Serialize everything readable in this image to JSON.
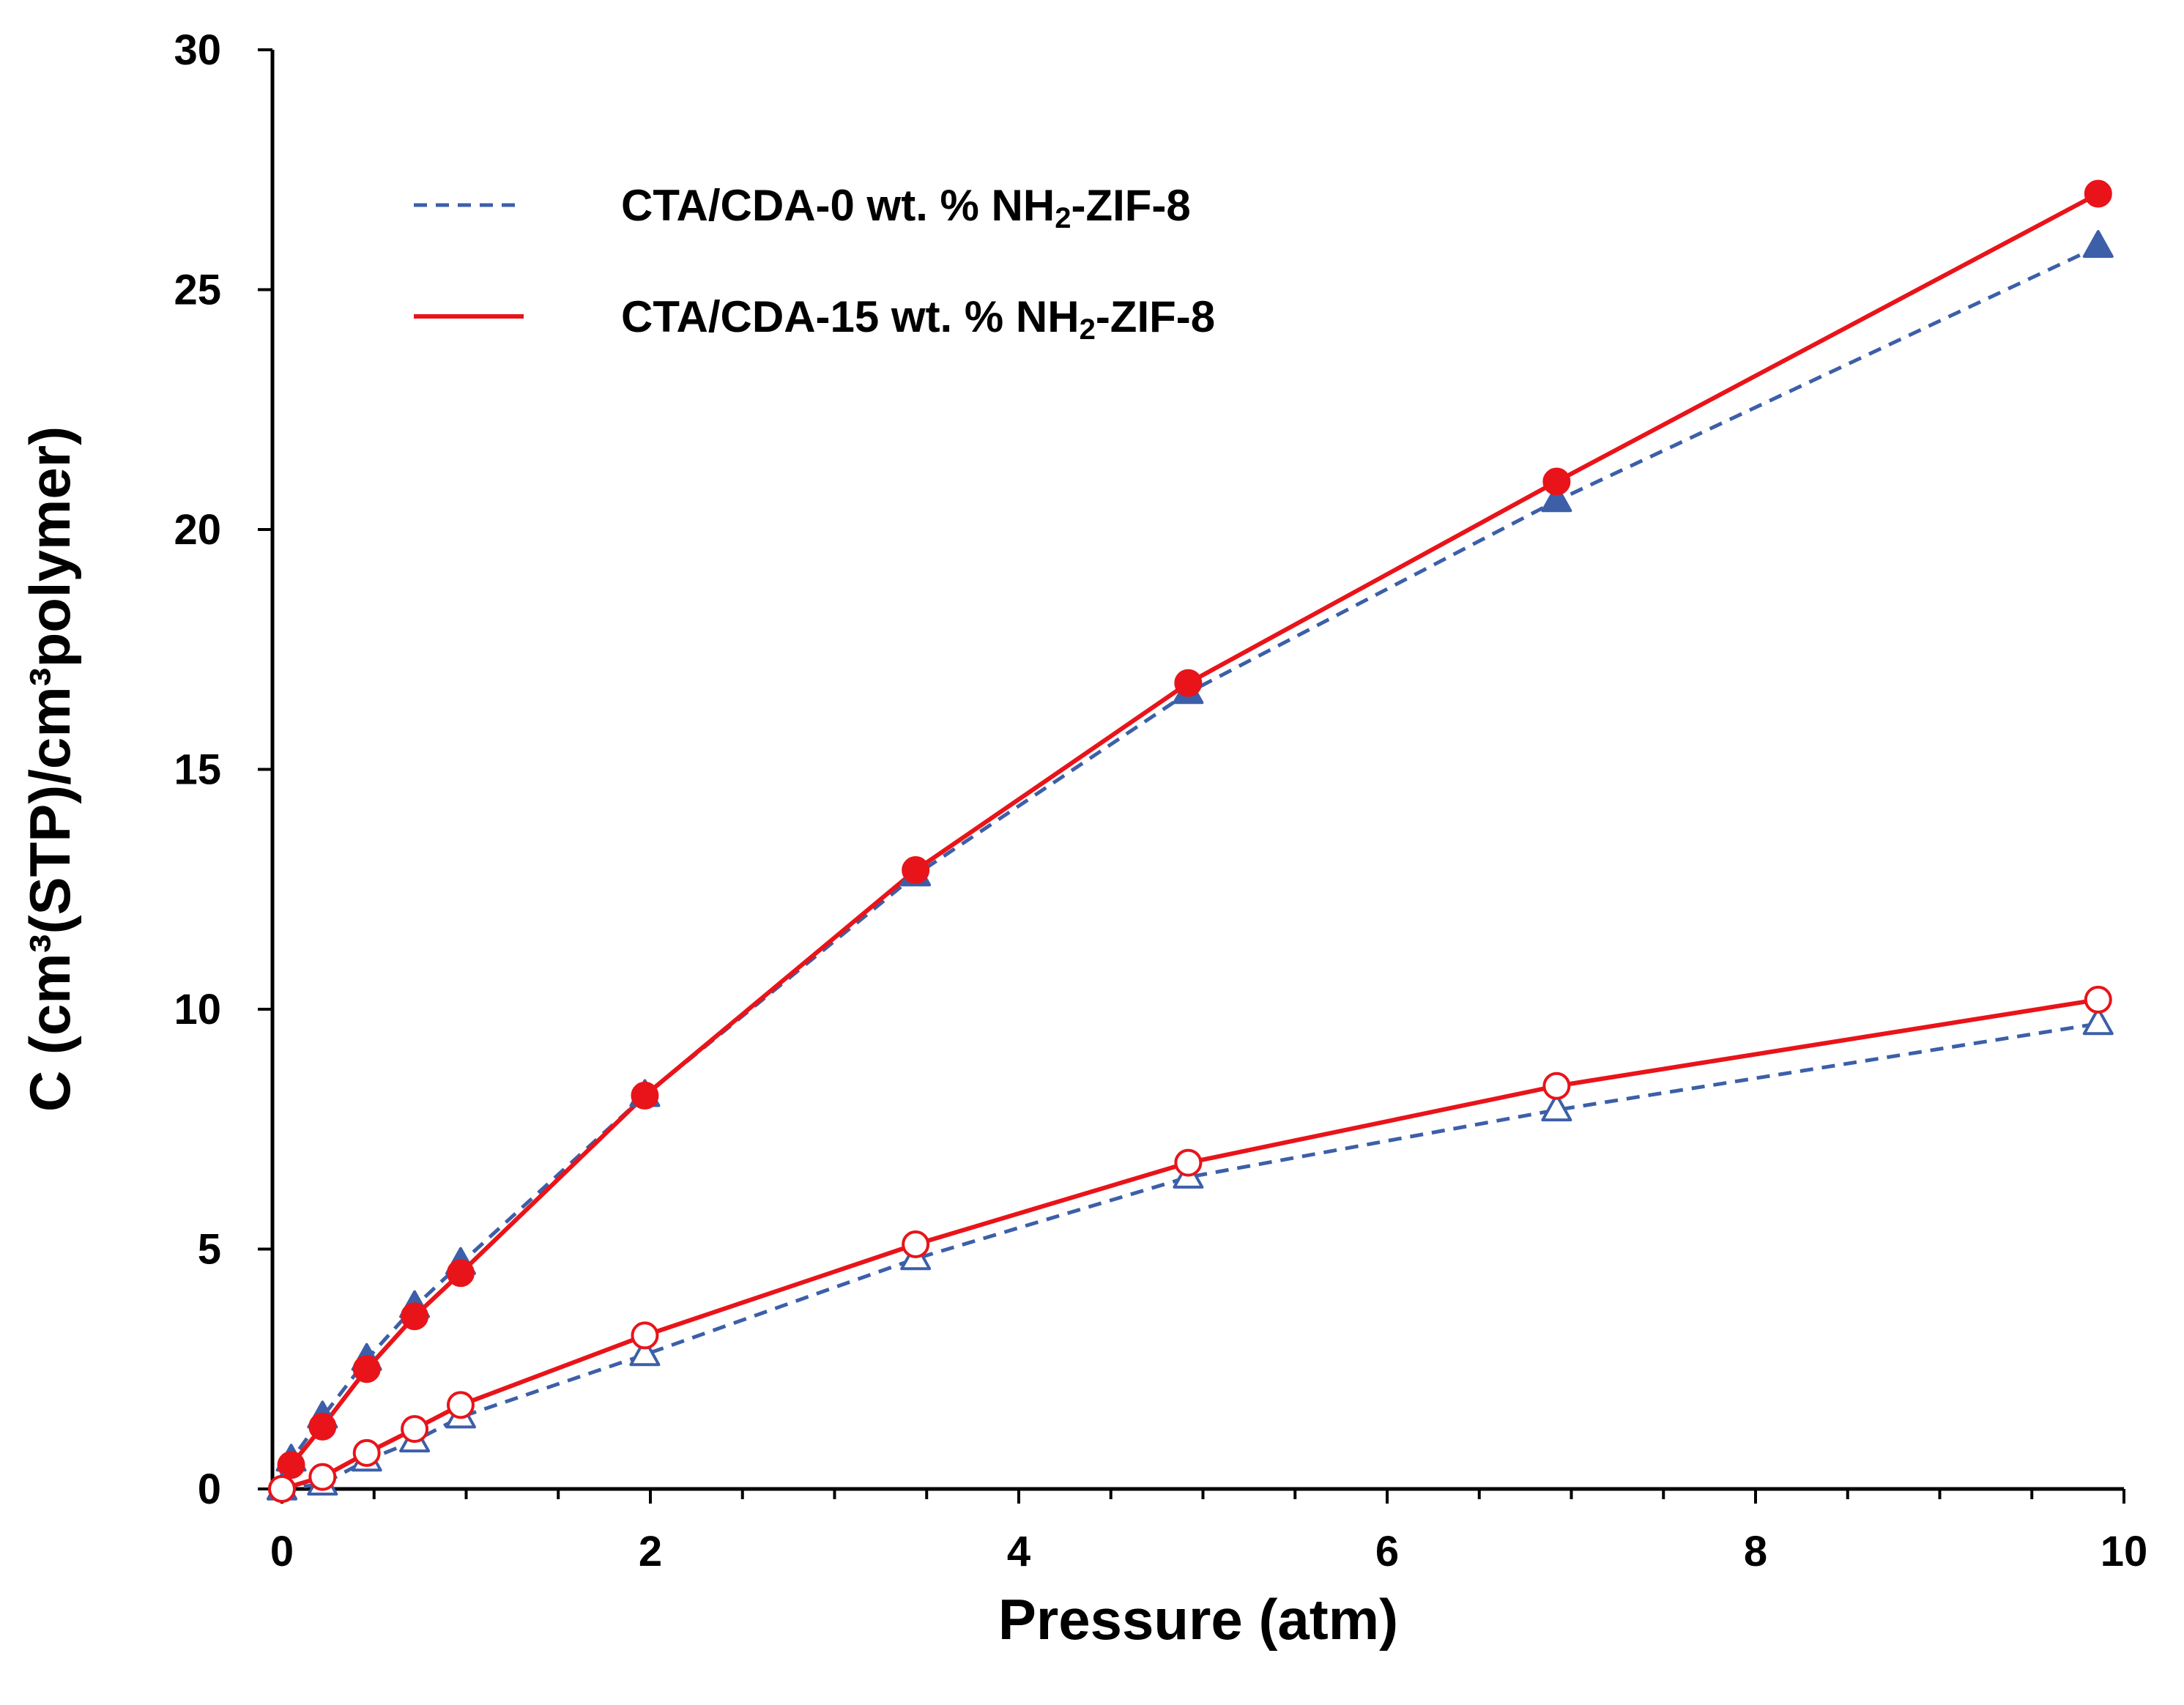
{
  "chart_data": {
    "type": "line",
    "title": "",
    "xlabel": "Pressure (atm)",
    "ylabel": "C (cm³(STP)/cm³polymer)",
    "xlim": [
      0,
      10
    ],
    "ylim": [
      0,
      30
    ],
    "xticks": [
      0,
      2,
      4,
      6,
      8,
      10
    ],
    "xtick_labels": [
      "0",
      "2",
      "4",
      "6",
      "8",
      "10"
    ],
    "yticks": [
      0,
      5,
      10,
      15,
      20,
      25,
      30
    ],
    "ytick_labels": [
      "0",
      "5",
      "10",
      "15",
      "20",
      "25",
      "30"
    ],
    "grid": false,
    "legend_position": "top-left",
    "legend": [
      {
        "label_prefix": "CTA/CDA-0 wt. % NH",
        "label_sub": "2",
        "label_suffix": "-ZIF-8",
        "style": "dashed",
        "color": "#3c5fa8"
      },
      {
        "label_prefix": "CTA/CDA-15 wt. % NH",
        "label_sub": "2",
        "label_suffix": "-ZIF-8",
        "style": "solid",
        "color": "#e8141a"
      }
    ],
    "series": [
      {
        "name": "CTA/CDA-0 wt. % NH2-ZIF-8 (filled triangles)",
        "line": "dashed",
        "color": "#3c5fa8",
        "marker": "triangle",
        "filled": true,
        "x": [
          0,
          0.05,
          0.22,
          0.46,
          0.72,
          0.97,
          1.97,
          3.44,
          4.92,
          6.92,
          9.86
        ],
        "y": [
          0,
          0.6,
          1.5,
          2.7,
          3.8,
          4.7,
          8.2,
          12.8,
          16.6,
          20.6,
          25.9
        ]
      },
      {
        "name": "CTA/CDA-15 wt. % NH2-ZIF-8 (filled circles)",
        "line": "solid",
        "color": "#e8141a",
        "marker": "circle",
        "filled": true,
        "x": [
          0,
          0.05,
          0.22,
          0.46,
          0.72,
          0.97,
          1.97,
          3.44,
          4.92,
          6.92,
          9.86
        ],
        "y": [
          0,
          0.5,
          1.3,
          2.5,
          3.6,
          4.5,
          8.2,
          12.9,
          16.8,
          21.0,
          27.0
        ]
      },
      {
        "name": "CTA/CDA-0 wt. % NH2-ZIF-8 (open triangles)",
        "line": "dashed",
        "color": "#3c5fa8",
        "marker": "triangle",
        "filled": false,
        "x": [
          0,
          0.22,
          0.46,
          0.72,
          0.97,
          1.97,
          3.44,
          4.92,
          6.92,
          9.86
        ],
        "y": [
          0,
          0.1,
          0.6,
          1.0,
          1.5,
          2.8,
          4.8,
          6.5,
          7.9,
          9.7
        ]
      },
      {
        "name": "CTA/CDA-15 wt. % NH2-ZIF-8 (open circles)",
        "line": "solid",
        "color": "#e8141a",
        "marker": "circle",
        "filled": false,
        "x": [
          0,
          0.22,
          0.46,
          0.72,
          0.97,
          1.97,
          3.44,
          4.92,
          6.92,
          9.86
        ],
        "y": [
          0,
          0.25,
          0.75,
          1.25,
          1.75,
          3.2,
          5.1,
          6.8,
          8.4,
          10.2
        ]
      }
    ]
  }
}
